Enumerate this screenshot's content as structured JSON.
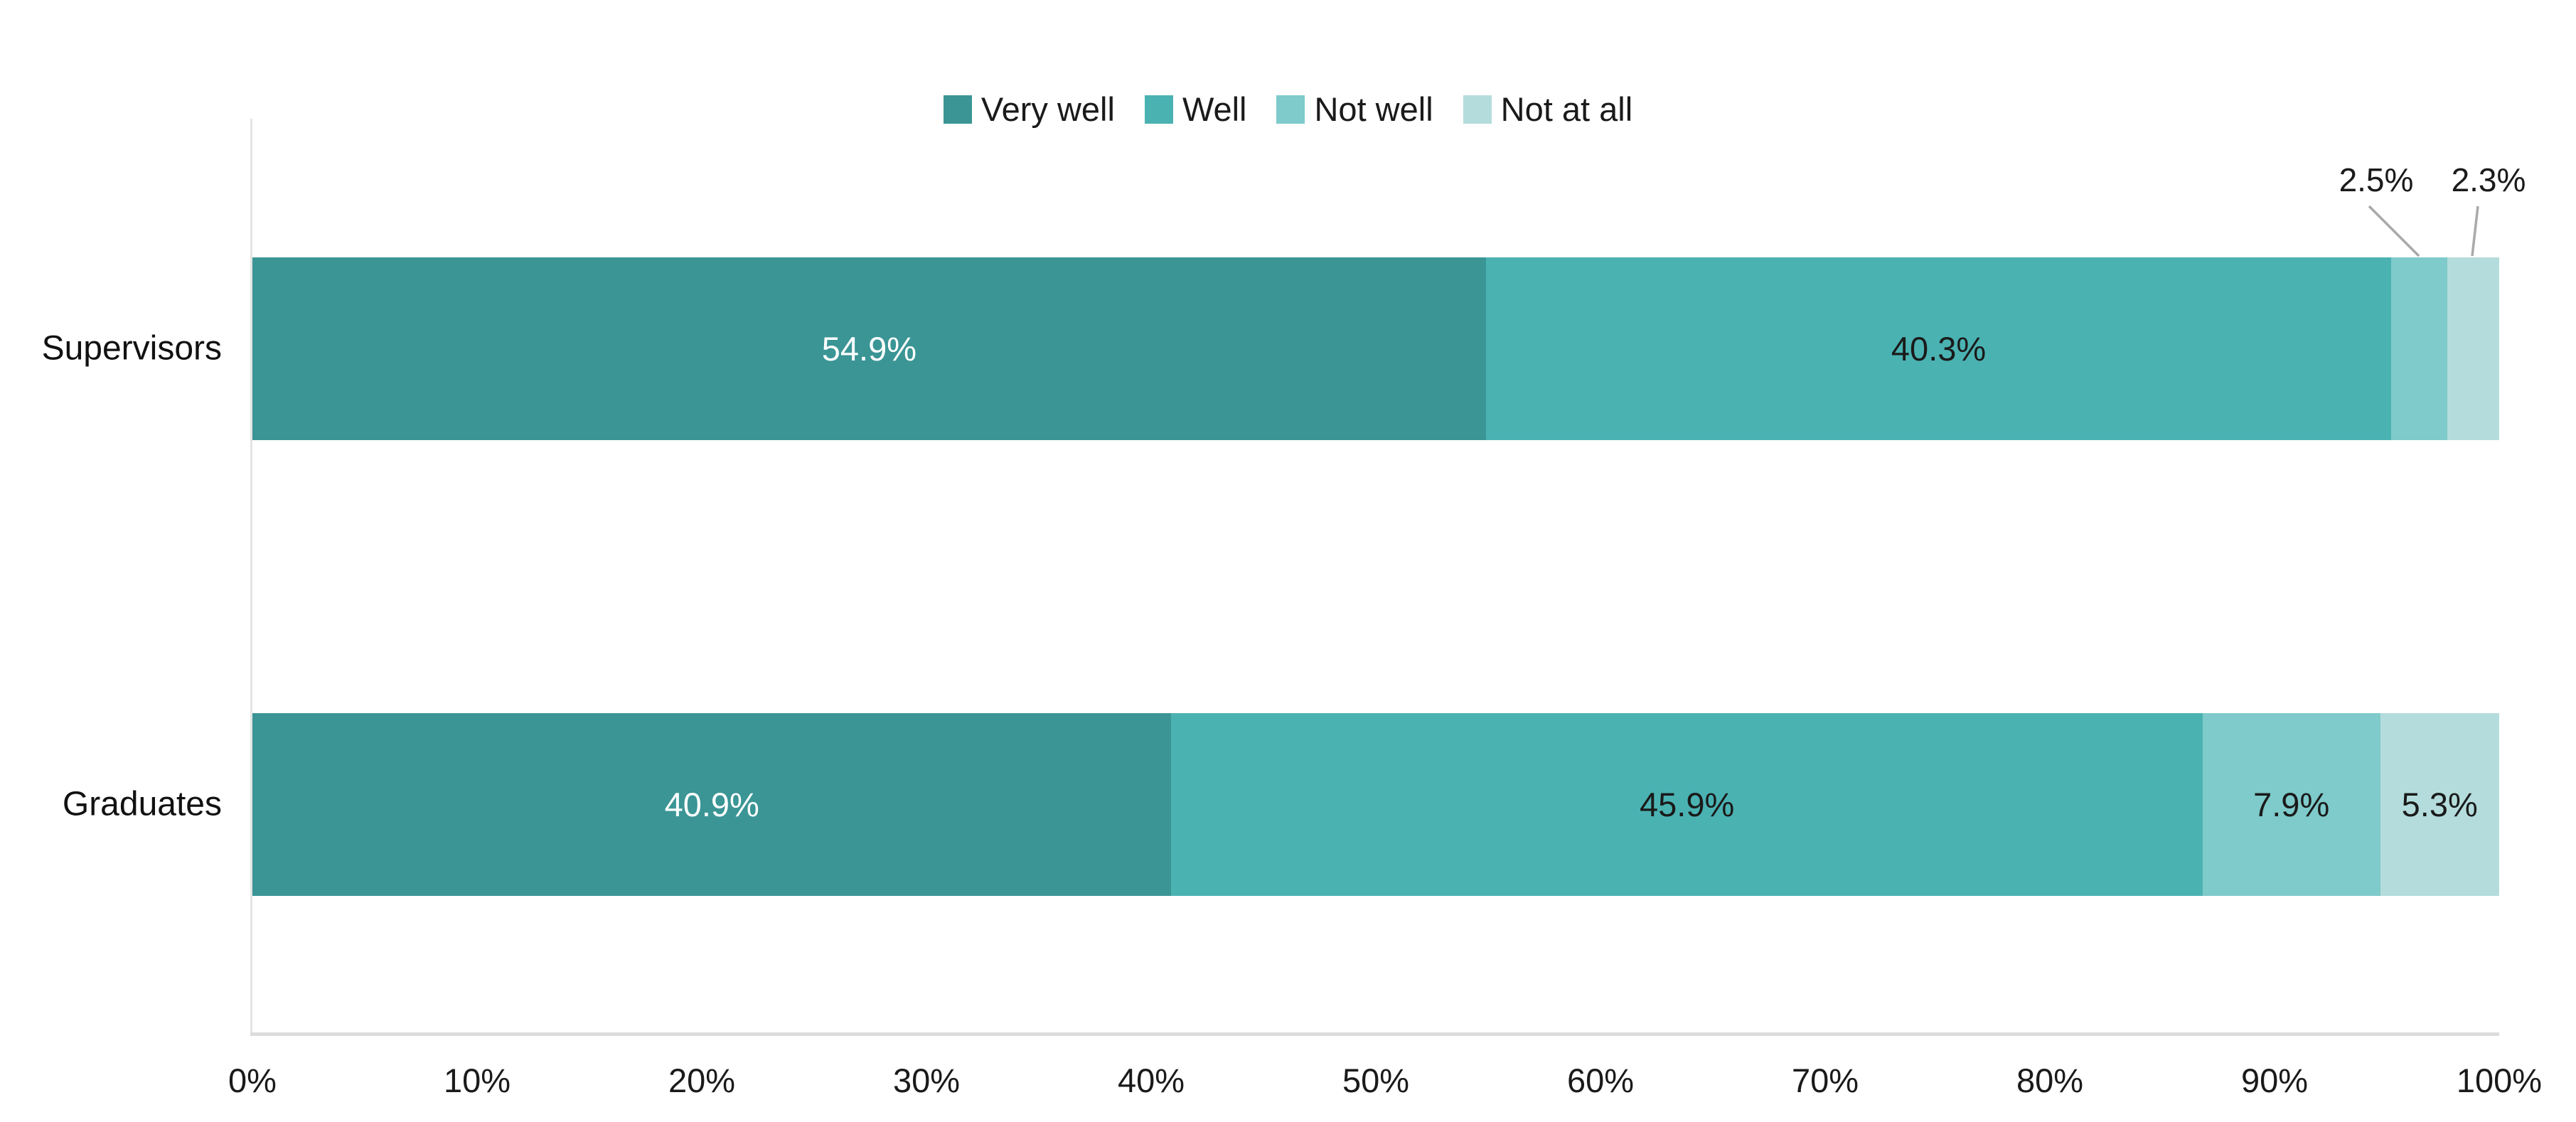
{
  "chart_data": {
    "type": "bar",
    "orientation": "horizontal",
    "stacked": true,
    "title": "",
    "xlabel": "",
    "ylabel": "",
    "categories": [
      "Supervisors",
      "Graduates"
    ],
    "series": [
      {
        "name": "Very well",
        "color": "#3B9595",
        "label_color": "#FFFFFF",
        "values": [
          54.9,
          40.9
        ]
      },
      {
        "name": "Well",
        "color": "#4BB2B2",
        "label_color": "#1A1A1A",
        "values": [
          40.3,
          45.9
        ]
      },
      {
        "name": "Not well",
        "color": "#7FCACA",
        "label_color": "#1A1A1A",
        "values": [
          2.5,
          7.9
        ]
      },
      {
        "name": "Not at all",
        "color": "#B5DCDC",
        "label_color": "#1A1A1A",
        "values": [
          2.3,
          5.3
        ]
      }
    ],
    "data_labels": [
      [
        "54.9%",
        "40.3%",
        "",
        ""
      ],
      [
        "40.9%",
        "45.9%",
        "7.9%",
        "5.3%"
      ]
    ],
    "callouts": [
      {
        "text": "2.5%",
        "series": "Not well",
        "category": "Supervisors"
      },
      {
        "text": "2.3%",
        "series": "Not at all",
        "category": "Supervisors"
      }
    ],
    "x_ticks": [
      "0%",
      "10%",
      "20%",
      "30%",
      "40%",
      "50%",
      "60%",
      "70%",
      "80%",
      "90%",
      "100%"
    ],
    "xlim": [
      0,
      100
    ],
    "grid": false,
    "legend_position": "top",
    "colors": {
      "y_axis_line": "#E4E4E4",
      "x_axis_line": "#DCDCDC",
      "callout_leader_line": "#A9A9A9",
      "text": "#1A1A1A"
    }
  }
}
